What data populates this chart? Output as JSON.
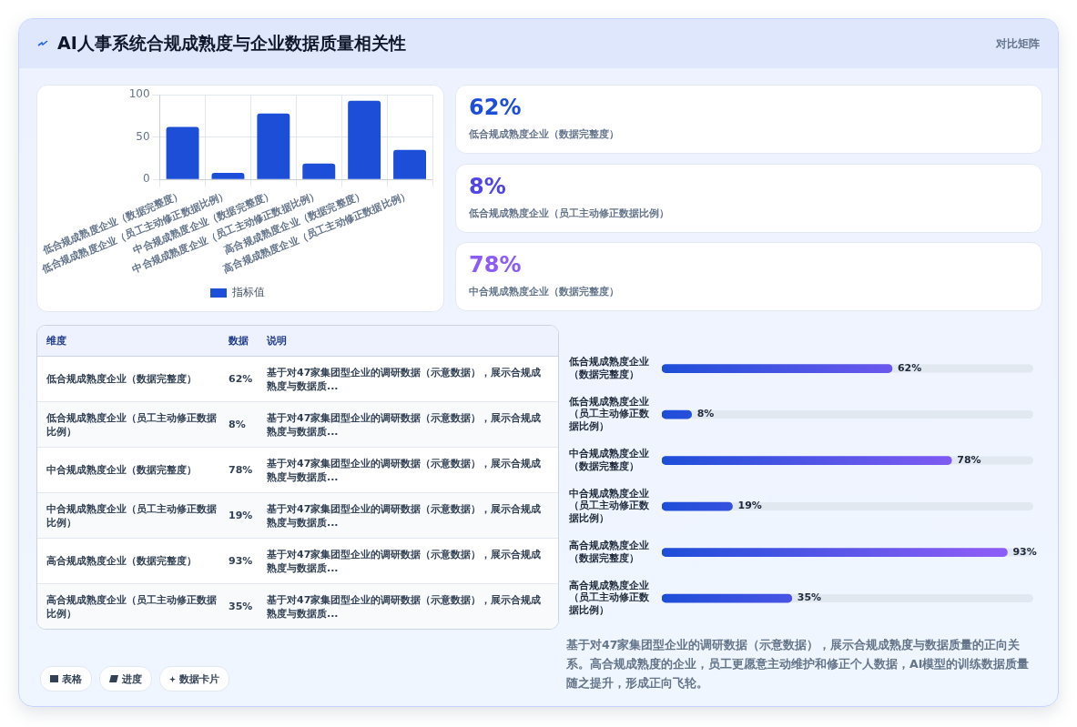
{
  "chart_data": [
    {
      "type": "bar",
      "title": "AI人事系统合规成熟度与企业数据质量相关性",
      "categories": [
        "低合规成熟度企业（数据完整度）",
        "低合规成熟度企业（员工主动修正数据比例）",
        "中合规成熟度企业（数据完整度）",
        "中合规成熟度企业（员工主动修正数据比例）",
        "高合规成熟度企业（数据完整度）",
        "高合规成熟度企业（员工主动修正数据比例）"
      ],
      "series": [
        {
          "name": "指标值",
          "color": "#1d4ed8",
          "values": [
            62,
            8,
            78,
            19,
            93,
            35
          ]
        }
      ],
      "value_labels": [
        "62%",
        "8%",
        "78%",
        "19%",
        "93%",
        "35%"
      ],
      "ylim": [
        0,
        100
      ],
      "yticks": [
        0,
        50,
        100
      ],
      "grid": true,
      "legend": "bottom",
      "annotations": [
        "对比矩阵",
        "维度",
        "数据",
        "说明",
        "表格",
        "进度",
        "数据卡片",
        "基于对47家集团型企业的调研数据（示意数据），展示合规成熟度与数据质量的正向关系。高合规成熟度的企业，员工更愿意主动维护和修正个人数据，AI模型的训练数据质量随之提升，形成正向飞轮。",
        "基于对47家集团型企业的调研数据（示意数据），展示合规成熟度与数据质..."
      ]
    },
    {
      "type": "bar",
      "orientation": "horizontal",
      "categories": [
        "低合规成熟度企业（数据完整度）",
        "低合规成熟度企业（员工主动修正数据比例）",
        "中合规成熟度企业（数据完整度）",
        "中合规成熟度企业（员工主动修正数据比例）",
        "高合规成熟度企业（数据完整度）",
        "高合规成熟度企业（员工主动修正数据比例）"
      ],
      "series": [
        {
          "color": "#1d4ed8",
          "values": [
            62,
            8,
            78,
            19,
            93,
            35
          ],
          "value_labels": [
            "62%",
            "8%",
            "78%",
            "19%",
            "93%",
            "35%"
          ]
        }
      ],
      "xlim": [
        0,
        100
      ],
      "tick_labels": "y"
    }
  ]
}
